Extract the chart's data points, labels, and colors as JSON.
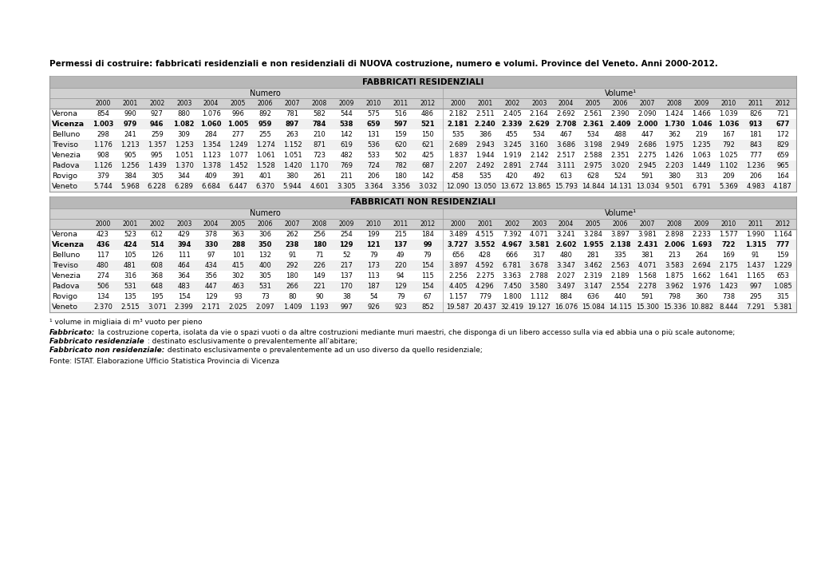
{
  "title": "Permessi di costruire: fabbricati residenziali e non residenziali di NUOVA costruzione, numero e volumi. Province del Veneto. Anni 2000-2012.",
  "years": [
    "2000",
    "2001",
    "2002",
    "2003",
    "2004",
    "2005",
    "2006",
    "2007",
    "2008",
    "2009",
    "2010",
    "2011",
    "2012"
  ],
  "section1_header": "FABBRICATI RESIDENZIALI",
  "section1_numero_header": "Numero",
  "section1_volume_header": "Volume¹",
  "section1_rows": [
    {
      "province": "Verona",
      "bold": false,
      "numero": [
        "854",
        "990",
        "927",
        "880",
        "1.076",
        "996",
        "892",
        "781",
        "582",
        "544",
        "575",
        "516",
        "486"
      ],
      "volume": [
        "2.182",
        "2.511",
        "2.405",
        "2.164",
        "2.692",
        "2.561",
        "2.390",
        "2.090",
        "1.424",
        "1.466",
        "1.039",
        "826",
        "721"
      ]
    },
    {
      "province": "Vicenza",
      "bold": true,
      "numero": [
        "1.003",
        "979",
        "946",
        "1.082",
        "1.060",
        "1.005",
        "959",
        "897",
        "784",
        "538",
        "659",
        "597",
        "521"
      ],
      "volume": [
        "2.181",
        "2.240",
        "2.339",
        "2.629",
        "2.708",
        "2.361",
        "2.409",
        "2.000",
        "1.730",
        "1.046",
        "1.036",
        "913",
        "677"
      ]
    },
    {
      "province": "Belluno",
      "bold": false,
      "numero": [
        "298",
        "241",
        "259",
        "309",
        "284",
        "277",
        "255",
        "263",
        "210",
        "142",
        "131",
        "159",
        "150"
      ],
      "volume": [
        "535",
        "386",
        "455",
        "534",
        "467",
        "534",
        "488",
        "447",
        "362",
        "219",
        "167",
        "181",
        "172"
      ]
    },
    {
      "province": "Treviso",
      "bold": false,
      "numero": [
        "1.176",
        "1.213",
        "1.357",
        "1.253",
        "1.354",
        "1.249",
        "1.274",
        "1.152",
        "871",
        "619",
        "536",
        "620",
        "621"
      ],
      "volume": [
        "2.689",
        "2.943",
        "3.245",
        "3.160",
        "3.686",
        "3.198",
        "2.949",
        "2.686",
        "1.975",
        "1.235",
        "792",
        "843",
        "829"
      ]
    },
    {
      "province": "Venezia",
      "bold": false,
      "numero": [
        "908",
        "905",
        "995",
        "1.051",
        "1.123",
        "1.077",
        "1.061",
        "1.051",
        "723",
        "482",
        "533",
        "502",
        "425"
      ],
      "volume": [
        "1.837",
        "1.944",
        "1.919",
        "2.142",
        "2.517",
        "2.588",
        "2.351",
        "2.275",
        "1.426",
        "1.063",
        "1.025",
        "777",
        "659"
      ]
    },
    {
      "province": "Padova",
      "bold": false,
      "numero": [
        "1.126",
        "1.256",
        "1.439",
        "1.370",
        "1.378",
        "1.452",
        "1.528",
        "1.420",
        "1.170",
        "769",
        "724",
        "782",
        "687"
      ],
      "volume": [
        "2.207",
        "2.492",
        "2.891",
        "2.744",
        "3.111",
        "2.975",
        "3.020",
        "2.945",
        "2.203",
        "1.449",
        "1.102",
        "1.236",
        "965"
      ]
    },
    {
      "province": "Rovigo",
      "bold": false,
      "numero": [
        "379",
        "384",
        "305",
        "344",
        "409",
        "391",
        "401",
        "380",
        "261",
        "211",
        "206",
        "180",
        "142"
      ],
      "volume": [
        "458",
        "535",
        "420",
        "492",
        "613",
        "628",
        "524",
        "591",
        "380",
        "313",
        "209",
        "206",
        "164"
      ]
    },
    {
      "province": "Veneto",
      "bold": false,
      "numero": [
        "5.744",
        "5.968",
        "6.228",
        "6.289",
        "6.684",
        "6.447",
        "6.370",
        "5.944",
        "4.601",
        "3.305",
        "3.364",
        "3.356",
        "3.032"
      ],
      "volume": [
        "12.090",
        "13.050",
        "13.672",
        "13.865",
        "15.793",
        "14.844",
        "14.131",
        "13.034",
        "9.501",
        "6.791",
        "5.369",
        "4.983",
        "4.187"
      ]
    }
  ],
  "section2_header": "FABBRICATI NON RESIDENZIALI",
  "section2_numero_header": "Numero",
  "section2_volume_header": "Volume¹",
  "section2_rows": [
    {
      "province": "Verona",
      "bold": false,
      "numero": [
        "423",
        "523",
        "612",
        "429",
        "378",
        "363",
        "306",
        "262",
        "256",
        "254",
        "199",
        "215",
        "184"
      ],
      "volume": [
        "3.489",
        "4.515",
        "7.392",
        "4.071",
        "3.241",
        "3.284",
        "3.897",
        "3.981",
        "2.898",
        "2.233",
        "1.577",
        "1.990",
        "1.164"
      ]
    },
    {
      "province": "Vicenza",
      "bold": true,
      "numero": [
        "436",
        "424",
        "514",
        "394",
        "330",
        "288",
        "350",
        "238",
        "180",
        "129",
        "121",
        "137",
        "99"
      ],
      "volume": [
        "3.727",
        "3.552",
        "4.967",
        "3.581",
        "2.602",
        "1.955",
        "2.138",
        "2.431",
        "2.006",
        "1.693",
        "722",
        "1.315",
        "777"
      ]
    },
    {
      "province": "Belluno",
      "bold": false,
      "numero": [
        "117",
        "105",
        "126",
        "111",
        "97",
        "101",
        "132",
        "91",
        "71",
        "52",
        "79",
        "49",
        "79"
      ],
      "volume": [
        "656",
        "428",
        "666",
        "317",
        "480",
        "281",
        "335",
        "381",
        "213",
        "264",
        "169",
        "91",
        "159"
      ]
    },
    {
      "province": "Treviso",
      "bold": false,
      "numero": [
        "480",
        "481",
        "608",
        "464",
        "434",
        "415",
        "400",
        "292",
        "226",
        "217",
        "173",
        "220",
        "154"
      ],
      "volume": [
        "3.897",
        "4.592",
        "6.781",
        "3.678",
        "3.347",
        "3.462",
        "2.563",
        "4.071",
        "3.583",
        "2.694",
        "2.175",
        "1.437",
        "1.229"
      ]
    },
    {
      "province": "Venezia",
      "bold": false,
      "numero": [
        "274",
        "316",
        "368",
        "364",
        "356",
        "302",
        "305",
        "180",
        "149",
        "137",
        "113",
        "94",
        "115"
      ],
      "volume": [
        "2.256",
        "2.275",
        "3.363",
        "2.788",
        "2.027",
        "2.319",
        "2.189",
        "1.568",
        "1.875",
        "1.662",
        "1.641",
        "1.165",
        "653"
      ]
    },
    {
      "province": "Padova",
      "bold": false,
      "numero": [
        "506",
        "531",
        "648",
        "483",
        "447",
        "463",
        "531",
        "266",
        "221",
        "170",
        "187",
        "129",
        "154"
      ],
      "volume": [
        "4.405",
        "4.296",
        "7.450",
        "3.580",
        "3.497",
        "3.147",
        "2.554",
        "2.278",
        "3.962",
        "1.976",
        "1.423",
        "997",
        "1.085"
      ]
    },
    {
      "province": "Rovigo",
      "bold": false,
      "numero": [
        "134",
        "135",
        "195",
        "154",
        "129",
        "93",
        "73",
        "80",
        "90",
        "38",
        "54",
        "79",
        "67"
      ],
      "volume": [
        "1.157",
        "779",
        "1.800",
        "1.112",
        "884",
        "636",
        "440",
        "591",
        "798",
        "360",
        "738",
        "295",
        "315"
      ]
    },
    {
      "province": "Veneto",
      "bold": false,
      "numero": [
        "2.370",
        "2.515",
        "3.071",
        "2.399",
        "2.171",
        "2.025",
        "2.097",
        "1.409",
        "1.193",
        "997",
        "926",
        "923",
        "852"
      ],
      "volume": [
        "19.587",
        "20.437",
        "32.419",
        "19.127",
        "16.076",
        "15.084",
        "14.115",
        "15.300",
        "15.336",
        "10.882",
        "8.444",
        "7.291",
        "5.381"
      ]
    }
  ],
  "footnote1": "¹ volume in migliaia di m³ vuoto per pieno",
  "footnote2_bold": "Fabbricato:",
  "footnote2_rest": " la costruzione coperta, isolata da vie o spazi vuoti o da altre costruzioni mediante muri maestri, che disponga di un libero accesso sulla via ed abbia una o più scale autonome;",
  "footnote3_bold": "Fabbricato residenziale",
  "footnote3_rest": " : destinato esclusivamente o prevalentemente all'abitare;",
  "footnote4_bold": "Fabbricato non residenziale:",
  "footnote4_rest": " destinato esclusivamente o prevalentemente ad un uso diverso da quello residenziale;",
  "source": "Fonte: ISTAT. Elaborazione Ufficio Statistica Provincia di Vicenza",
  "header_bg": "#b8b8b8",
  "subheader_bg": "#d0d0d0",
  "row_bg_alt": "#f0f0f0",
  "row_bg_white": "#ffffff",
  "border_color": "#999999"
}
